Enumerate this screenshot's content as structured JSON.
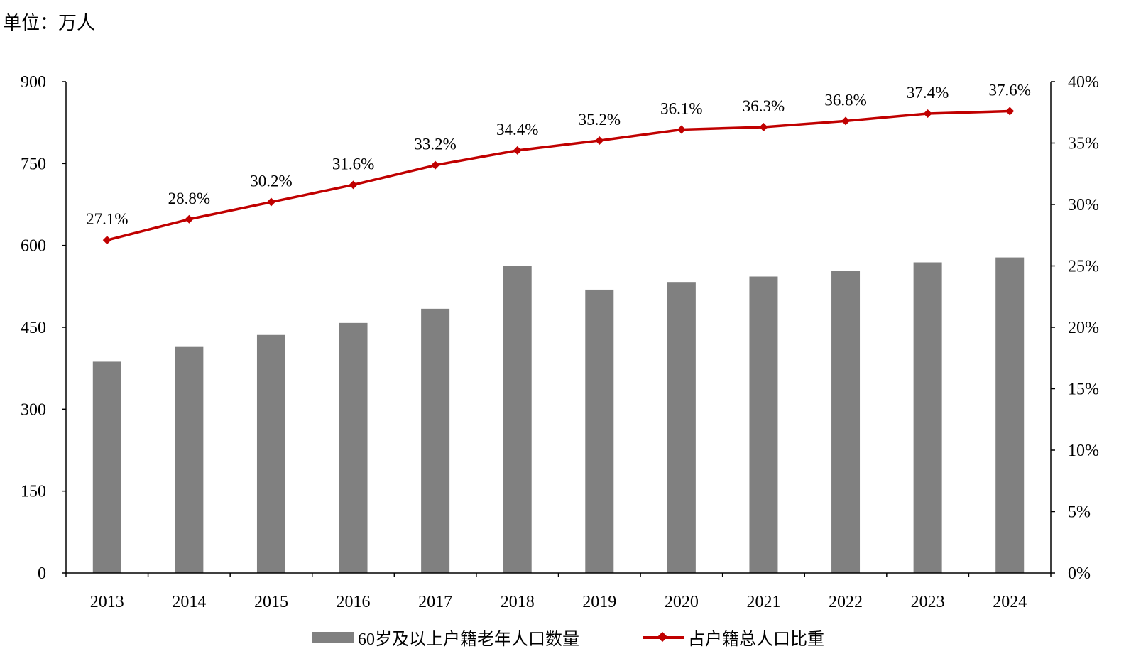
{
  "unit_label": "单位：万人",
  "chart_data": {
    "type": "bar",
    "categories": [
      "2013",
      "2014",
      "2015",
      "2016",
      "2017",
      "2018",
      "2019",
      "2020",
      "2021",
      "2022",
      "2023",
      "2024"
    ],
    "series": [
      {
        "name": "60岁及以上户籍老年人口数量",
        "type": "bar",
        "axis": "left",
        "color": "#808080",
        "values": [
          387,
          414,
          436,
          458,
          484,
          562,
          519,
          533,
          543,
          554,
          569,
          578
        ]
      },
      {
        "name": "占户籍总人口比重",
        "type": "line",
        "axis": "right",
        "color": "#c00000",
        "values": [
          27.1,
          28.8,
          30.2,
          31.6,
          33.2,
          34.4,
          35.2,
          36.1,
          36.3,
          36.8,
          37.4,
          37.6
        ],
        "labels": [
          "27.1%",
          "28.8%",
          "30.2%",
          "31.6%",
          "33.2%",
          "34.4%",
          "35.2%",
          "36.1%",
          "36.3%",
          "36.8%",
          "37.4%",
          "37.6%"
        ]
      }
    ],
    "y_left": {
      "min": 0,
      "max": 900,
      "ticks": [
        "0",
        "150",
        "300",
        "450",
        "600",
        "750",
        "900"
      ]
    },
    "y_right": {
      "min": 0,
      "max": 40,
      "ticks": [
        "0%",
        "5%",
        "10%",
        "15%",
        "20%",
        "25%",
        "30%",
        "35%",
        "40%"
      ]
    },
    "grid": false,
    "legend_position": "bottom"
  }
}
